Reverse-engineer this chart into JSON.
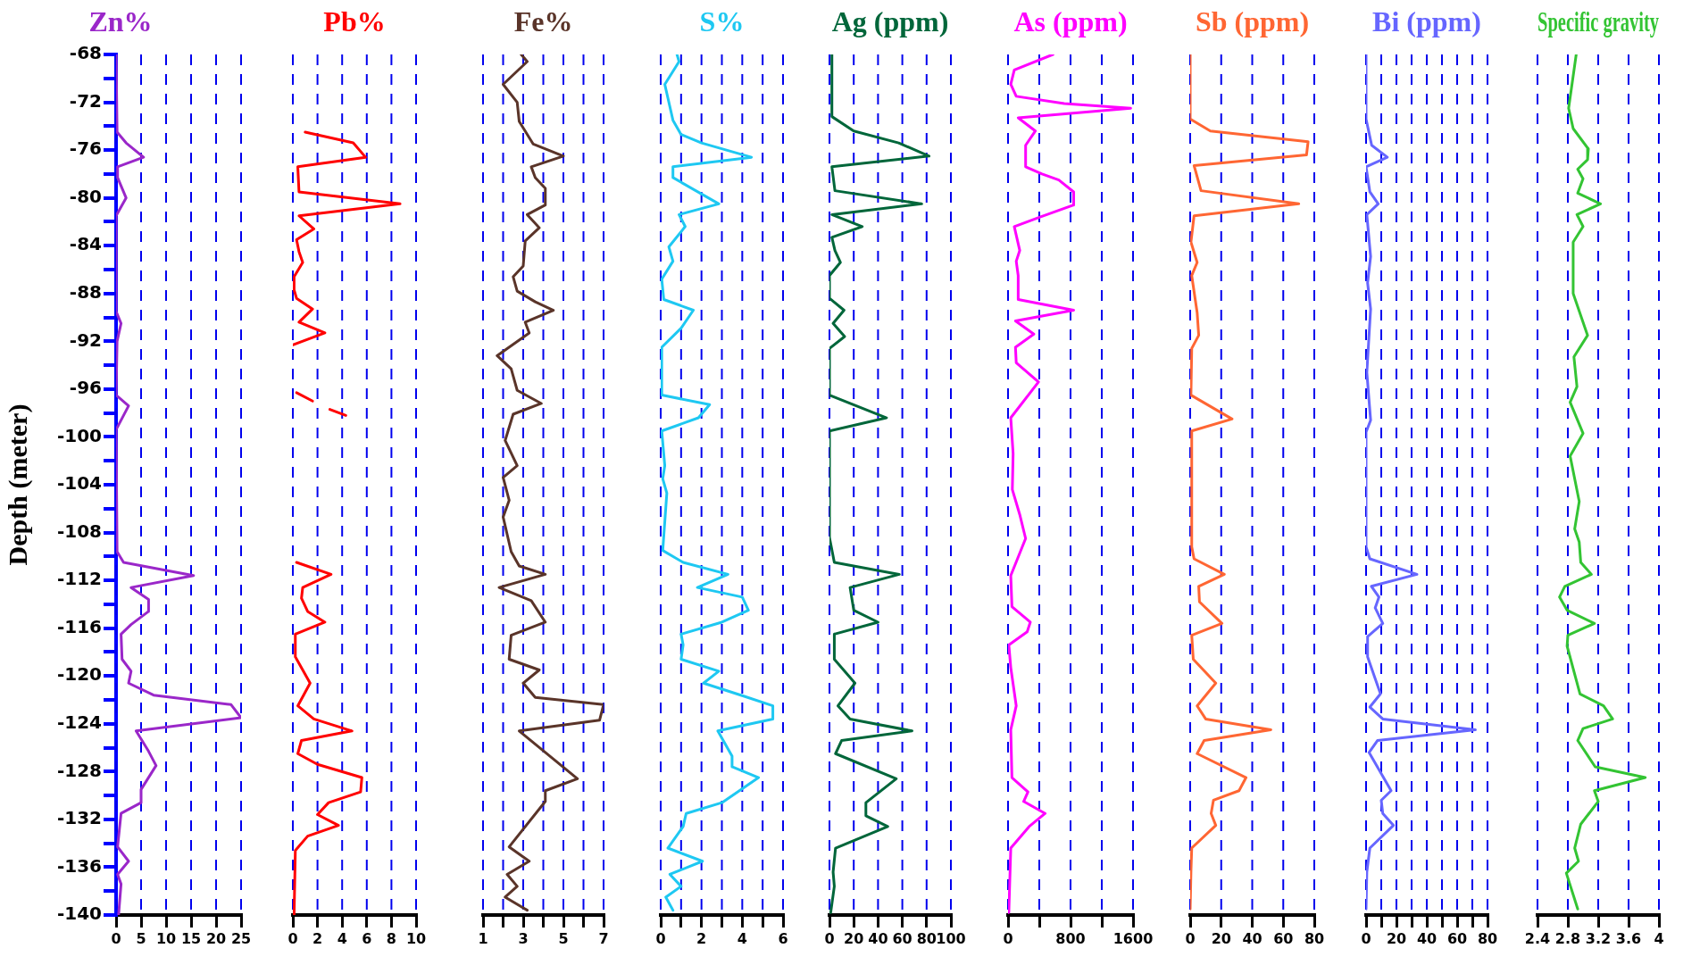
{
  "chart_data": [
    {
      "type": "line",
      "title": "Zn%",
      "color": "#9a27c9",
      "ylabel": "Depth (meter)",
      "xlim": [
        0,
        25
      ],
      "xticks": [
        0,
        5,
        10,
        15,
        20,
        25
      ],
      "ylim": [
        -140,
        -68
      ],
      "yticks": [
        -68,
        {
          "value": -70,
          "label": null
        },
        -72,
        {
          "value": -74,
          "label": null
        },
        -76,
        {
          "value": -78,
          "label": null
        },
        -80,
        {
          "value": -82,
          "label": null
        },
        -84,
        {
          "value": -86,
          "label": null
        },
        -88,
        {
          "value": -90,
          "label": null
        },
        -92,
        {
          "value": -94,
          "label": null
        },
        -96,
        {
          "value": -98,
          "label": null
        },
        -100,
        {
          "value": -102,
          "label": null
        },
        -104,
        {
          "value": -106,
          "label": null
        },
        -108,
        {
          "value": -110,
          "label": null
        },
        -112,
        {
          "value": -114,
          "label": null
        },
        -116,
        {
          "value": -118,
          "label": null
        },
        -120,
        {
          "value": -122,
          "label": null
        },
        -124,
        {
          "value": -126,
          "label": null
        },
        -128,
        {
          "value": -130,
          "label": null
        },
        -132,
        {
          "value": -134,
          "label": null
        },
        -136,
        {
          "value": -138,
          "label": null
        },
        -140
      ],
      "grid": "x",
      "x": [
        0,
        0.2,
        2,
        5.5,
        0.3,
        0.3,
        2,
        0,
        0,
        1,
        0.2,
        0,
        2.5,
        0,
        0.2,
        1.5,
        15.5,
        3,
        6.5,
        6.5,
        3,
        1,
        1.2,
        3,
        2.5,
        7.5,
        23,
        25,
        4,
        6.5,
        8,
        5,
        5,
        1,
        0.3,
        2.5,
        0.3,
        1,
        0.5
      ],
      "values": [
        -68,
        -74.5,
        -75.4,
        -76.6,
        -77.4,
        -78.3,
        -80,
        -81.5,
        -89.5,
        -90.5,
        -92,
        -96.5,
        -97.4,
        -99.4,
        -109.6,
        -110.5,
        -111.6,
        -112.6,
        -113.6,
        -114.6,
        -115.7,
        -116.5,
        -118.6,
        -119.6,
        -120.6,
        -121.6,
        -122.4,
        -123.5,
        -124.6,
        -126.3,
        -127.5,
        -129.5,
        -130.6,
        -131.5,
        -134.3,
        -135.5,
        -136.6,
        -137.4,
        -140
      ]
    },
    {
      "type": "line",
      "title": "Pb%",
      "color": "#ff0000",
      "xlim": [
        0,
        10
      ],
      "xticks": [
        0,
        2,
        4,
        6,
        8,
        10
      ],
      "ylim": [
        -140,
        -68
      ],
      "grid": "x",
      "tick_labels": "x",
      "series": [
        {
          "color": "#ff0000",
          "x": [
            1,
            4.9,
            5.9,
            0.4,
            0.5,
            8.7,
            0.5,
            1.7,
            0.3,
            0.5,
            0.8,
            0.1,
            0.1,
            0.3,
            1.6,
            0.5,
            2.6,
            0
          ],
          "values": [
            -74.5,
            -75.4,
            -76.6,
            -77.4,
            -79.5,
            -80.5,
            -81.5,
            -82.6,
            -83.5,
            -84.5,
            -85.4,
            -86.6,
            -87.7,
            -88.4,
            -89.3,
            -90.4,
            -91.3,
            -92.3
          ]
        },
        {
          "color": "#ff0000",
          "x": [
            0.3,
            1.6
          ],
          "values": [
            -96.3,
            -97
          ]
        },
        {
          "color": "#ff0000",
          "x": [
            3,
            4.3
          ],
          "values": [
            -97.7,
            -98.2
          ]
        },
        {
          "color": "#ff0000",
          "x": [
            0.3,
            3.1,
            0.8,
            0.7,
            1.2,
            2.6,
            0.2,
            0.2,
            1.4,
            0.4,
            1.7,
            4.8,
            0.7,
            0.4,
            2,
            5.6,
            5.5,
            2.9,
            2,
            3.7,
            1.2,
            0.2,
            0.1
          ],
          "values": [
            -110.5,
            -111.5,
            -112.6,
            -113.5,
            -114.6,
            -115.5,
            -116.5,
            -118.4,
            -120.6,
            -122.5,
            -123.6,
            -124.6,
            -125.4,
            -126.5,
            -127.4,
            -128.5,
            -129.7,
            -130.6,
            -131.6,
            -132.5,
            -133.4,
            -134.6,
            -140
          ]
        }
      ]
    },
    {
      "type": "line",
      "title": "Fe%",
      "color": "#5a3429",
      "xlim": [
        1,
        7
      ],
      "xticks": [
        1,
        {
          "value": 2,
          "label": null
        },
        3,
        {
          "value": 4,
          "label": null
        },
        5,
        {
          "value": 6,
          "label": null
        },
        7
      ],
      "ylim": [
        -140,
        -68
      ],
      "grid": "x",
      "tick_labels": "x",
      "x": [
        2.9,
        3.2,
        2,
        2.7,
        2.8,
        3.5,
        5,
        3.4,
        3.6,
        4.1,
        4.1,
        3.2,
        3.8,
        3.1,
        3,
        2.5,
        2.7,
        3.6,
        4.5,
        3.1,
        3.3,
        1.7,
        2.4,
        2.7,
        3.9,
        2.5,
        2.1,
        2.7,
        2,
        2.3,
        2,
        2.4,
        2.8,
        4.1,
        1.8,
        3.4,
        4.1,
        2.4,
        2.3,
        3.8,
        3,
        3.6,
        7,
        6.8,
        2.8,
        5.7,
        4.1,
        4.1,
        2.3,
        3.3,
        2.2,
        2.7,
        2.1,
        3.2
      ],
      "values": [
        -68,
        -68.6,
        -70.5,
        -72,
        -73.6,
        -75.5,
        -76.5,
        -77.4,
        -78.3,
        -79.2,
        -80.6,
        -81.4,
        -82.5,
        -83.6,
        -85.7,
        -86.6,
        -87.8,
        -88.7,
        -89.4,
        -90.4,
        -91.3,
        -93.2,
        -94.3,
        -96.1,
        -97.2,
        -98.1,
        -100.3,
        -102.4,
        -103.4,
        -105.3,
        -106.7,
        -109.6,
        -110.8,
        -111.5,
        -112.6,
        -113.7,
        -115.5,
        -116.6,
        -118.6,
        -119.5,
        -120.6,
        -121.8,
        -122.4,
        -123.7,
        -124.6,
        -128.6,
        -129.6,
        -130.5,
        -134.3,
        -135.5,
        -136.6,
        -137.6,
        -138.5,
        -139.6
      ]
    },
    {
      "type": "line",
      "title": "S%",
      "color": "#1ec8f2",
      "xlim": [
        0,
        6
      ],
      "xticks": [
        0,
        {
          "value": 1,
          "label": null
        },
        2,
        {
          "value": 3,
          "label": null
        },
        4,
        {
          "value": 5,
          "label": null
        },
        6
      ],
      "ylim": [
        -140,
        -68
      ],
      "grid": "x",
      "tick_labels": "x",
      "x": [
        0.8,
        0.9,
        0.2,
        0.6,
        1,
        2,
        4.45,
        0.6,
        0.6,
        2.85,
        0.9,
        1.2,
        0.4,
        0.6,
        0.05,
        0.15,
        1.6,
        1,
        0.05,
        0.05,
        2.4,
        1.85,
        0.05,
        0.2,
        0.1,
        0.3,
        0.1,
        1.1,
        3.3,
        1.8,
        4,
        4.3,
        3,
        1,
        1.1,
        1,
        2.85,
        2.1,
        4.1,
        5.5,
        5.5,
        2.8,
        3.5,
        3.5,
        4.8,
        3,
        1.25,
        1.1,
        0.35,
        2.05,
        0.45,
        1,
        0.25,
        0.6
      ],
      "values": [
        -68,
        -68.6,
        -70.5,
        -73.5,
        -74.7,
        -75.4,
        -76.6,
        -77.4,
        -78.3,
        -80.5,
        -81.4,
        -82.4,
        -84.1,
        -85.3,
        -86.8,
        -88.5,
        -89.4,
        -90.9,
        -92.5,
        -96.5,
        -97.3,
        -98.4,
        -99.5,
        -102.4,
        -103.5,
        -104.7,
        -109.5,
        -110.5,
        -111.5,
        -112.6,
        -113.4,
        -114.5,
        -115.5,
        -116.5,
        -117.4,
        -118.6,
        -119.6,
        -120.6,
        -121.7,
        -122.5,
        -123.6,
        -124.6,
        -126.7,
        -127.6,
        -128.5,
        -130.6,
        -131.5,
        -132.6,
        -134.4,
        -135.5,
        -136.6,
        -137.6,
        -138.5,
        -139.6
      ]
    },
    {
      "type": "line",
      "title": "Ag (ppm)",
      "color": "#00663a",
      "xlim": [
        0,
        100
      ],
      "xticks": [
        0,
        20,
        40,
        60,
        80,
        100
      ],
      "ylim": [
        -140,
        -68
      ],
      "grid": "x",
      "tick_labels": "x",
      "x": [
        2,
        2,
        20,
        57,
        82,
        2,
        4.5,
        76,
        2,
        27,
        2,
        4.5,
        9,
        0,
        0,
        12,
        3,
        12.5,
        0,
        0,
        47,
        0,
        0,
        4,
        57.5,
        17,
        20,
        40,
        4,
        4,
        21,
        7,
        17,
        68,
        10,
        5,
        55,
        30,
        30,
        48,
        5,
        3,
        4,
        1
      ],
      "values": [
        -68,
        -73.2,
        -74.4,
        -75.4,
        -76.5,
        -77.4,
        -79.4,
        -80.5,
        -81.4,
        -82.4,
        -83.3,
        -84.4,
        -85.4,
        -86.5,
        -88.4,
        -89.4,
        -90.5,
        -91.6,
        -92.6,
        -96.5,
        -98.4,
        -99.5,
        -108.4,
        -110.5,
        -111.5,
        -112.6,
        -114.5,
        -115.5,
        -116.5,
        -118.6,
        -120.6,
        -122.5,
        -123.6,
        -124.6,
        -125.4,
        -126.5,
        -128.6,
        -130.6,
        -131.7,
        -132.6,
        -134.4,
        -136.4,
        -137.6,
        -139.8
      ]
    },
    {
      "type": "line",
      "title": "As (ppm)",
      "color": "#ff00ff",
      "xlim": [
        0,
        1600
      ],
      "xticks": [
        0,
        {
          "value": 400,
          "label": null
        },
        800,
        {
          "value": 1200,
          "label": null
        },
        1600
      ],
      "ylim": [
        -140,
        -68
      ],
      "grid": "x",
      "tick_labels": "x",
      "x": [
        575,
        80,
        35,
        105,
        720,
        1570,
        130,
        350,
        225,
        225,
        435,
        650,
        840,
        840,
        410,
        80,
        150,
        105,
        130,
        130,
        840,
        95,
        330,
        95,
        105,
        390,
        35,
        65,
        55,
        150,
        225,
        35,
        50,
        285,
        245,
        10,
        35,
        105,
        35,
        50,
        255,
        200,
        475,
        270,
        35,
        10
      ],
      "values": [
        -68,
        -69.3,
        -70.5,
        -71.5,
        -72.1,
        -72.5,
        -73.3,
        -74.4,
        -75.6,
        -77.4,
        -78,
        -78.5,
        -79.5,
        -80.6,
        -81.6,
        -82.4,
        -84.4,
        -85.3,
        -86.5,
        -88.5,
        -89.4,
        -90.3,
        -91.4,
        -92.5,
        -93.8,
        -95.4,
        -98.4,
        -101.4,
        -104.4,
        -106.5,
        -108.5,
        -111.6,
        -114.2,
        -115.5,
        -116.3,
        -117.4,
        -119.3,
        -122.5,
        -124.5,
        -128.5,
        -129.7,
        -130.5,
        -131.5,
        -132.6,
        -134.4,
        -139.8
      ]
    },
    {
      "type": "line",
      "title": "Sb (ppm)",
      "color": "#ff6633",
      "xlim": [
        0,
        80
      ],
      "xticks": [
        0,
        20,
        40,
        60,
        80
      ],
      "ylim": [
        -140,
        -68
      ],
      "grid": "x",
      "tick_labels": "x",
      "x": [
        0,
        0,
        13,
        76,
        75,
        2.5,
        7,
        70,
        2.5,
        0.5,
        4.5,
        1,
        4.5,
        5.5,
        1,
        0.5,
        27,
        1,
        1,
        2.5,
        22,
        5.5,
        6,
        20.5,
        1,
        2,
        16.5,
        4.5,
        10,
        52,
        9,
        4.5,
        36,
        31.5,
        15,
        13.5,
        16.5,
        1,
        0.5,
        0
      ],
      "values": [
        -68,
        -73.4,
        -74.4,
        -75.3,
        -76.4,
        -77.3,
        -79.4,
        -80.5,
        -81.5,
        -83.7,
        -85.4,
        -86.5,
        -89.6,
        -91.5,
        -92.6,
        -96.5,
        -98.5,
        -99.5,
        -109.2,
        -110.2,
        -111.5,
        -112.5,
        -113.8,
        -115.6,
        -116.6,
        -118.6,
        -120.6,
        -122.5,
        -123.6,
        -124.5,
        -125.4,
        -126.5,
        -128.5,
        -129.6,
        -130.4,
        -131.5,
        -132.5,
        -134.4,
        -136.4,
        -139.5
      ]
    },
    {
      "type": "line",
      "title": "Bi (ppm)",
      "color": "#6666ff",
      "xlim": [
        0,
        80
      ],
      "xticks": [
        0,
        {
          "value": 10,
          "label": null
        },
        20,
        {
          "value": 30,
          "label": null
        },
        40,
        {
          "value": 50,
          "label": null
        },
        60,
        {
          "value": 70,
          "label": null
        },
        80
      ],
      "ylim": [
        -140,
        -68
      ],
      "grid": "x",
      "tick_labels": "x",
      "x": [
        0,
        0,
        3.7,
        14,
        0,
        2.5,
        8,
        0.5,
        3,
        1,
        3,
        0.5,
        3,
        0,
        0,
        2.5,
        33.5,
        3.5,
        8.5,
        6,
        11,
        1,
        1,
        9.5,
        2.5,
        11,
        72,
        7.5,
        2,
        16.5,
        10,
        11,
        18,
        2.5,
        0.5,
        0
      ],
      "values": [
        -68,
        -73.4,
        -75.6,
        -76.6,
        -77.4,
        -79.5,
        -80.5,
        -81.4,
        -84.9,
        -87.1,
        -89.3,
        -94.6,
        -98.6,
        -99.6,
        -109.2,
        -110.2,
        -111.5,
        -112.5,
        -113.4,
        -114.3,
        -115.6,
        -116.7,
        -118.4,
        -121.5,
        -122.6,
        -123.6,
        -124.5,
        -125.4,
        -126.4,
        -129.6,
        -130.4,
        -131.5,
        -132.5,
        -134.4,
        -136.4,
        -139.5
      ]
    },
    {
      "type": "line",
      "title": "Specific gravity",
      "color": "#33c433",
      "xlim": [
        2.4,
        4
      ],
      "xticks": [
        2.4,
        2.8,
        3.2,
        3.6,
        4
      ],
      "ylim": [
        -140,
        -68
      ],
      "grid": "x",
      "tick_labels": "x",
      "x": [
        2.91,
        2.81,
        2.87,
        3.07,
        3.06,
        2.93,
        3,
        2.93,
        3.23,
        2.92,
        3,
        2.87,
        2.87,
        3.06,
        2.88,
        2.92,
        2.83,
        3,
        2.83,
        2.95,
        2.89,
        2.95,
        2.97,
        3.11,
        2.76,
        2.69,
        2.79,
        3.15,
        2.8,
        2.79,
        2.96,
        3.27,
        3.39,
        3,
        2.93,
        3.16,
        3.82,
        3.15,
        3.2,
        2.97,
        2.89,
        2.94,
        2.78,
        2.93
      ],
      "values": [
        -68,
        -72.5,
        -74.2,
        -75.9,
        -76.8,
        -77.6,
        -78.4,
        -79.6,
        -80.5,
        -81.4,
        -82.4,
        -83.7,
        -88,
        -91.5,
        -93.3,
        -95.8,
        -97.1,
        -99.7,
        -101.6,
        -105.4,
        -107.7,
        -108.8,
        -110.5,
        -111.5,
        -112.5,
        -113.4,
        -114.5,
        -115.6,
        -116.6,
        -117.5,
        -121.5,
        -122.5,
        -123.6,
        -124.4,
        -125.4,
        -127.6,
        -128.5,
        -129.6,
        -130.5,
        -132.4,
        -134.4,
        -135.5,
        -136.5,
        -139.5
      ]
    }
  ]
}
